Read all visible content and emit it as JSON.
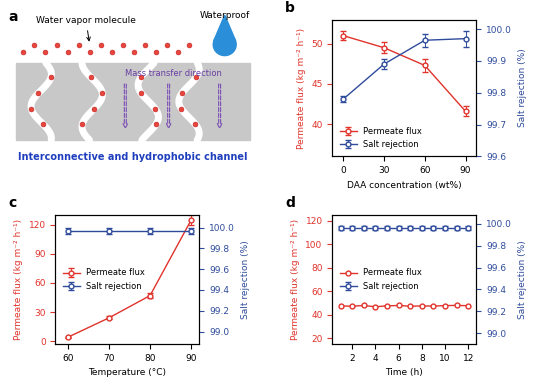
{
  "chart_data": [
    {
      "type": "diagram",
      "panel": "a",
      "annotations": [
        "Water vapor molecule",
        "Waterproof",
        "Mass transfer direction",
        "Interconnective and hydrophobic channel"
      ]
    },
    {
      "type": "line",
      "panel": "b",
      "x_label": "DAA concentration (wt%)",
      "y_label": "Permeate flux (kg m⁻² h⁻¹)",
      "y2_label": "Salt rejection (%)",
      "x": [
        0,
        30,
        60,
        90
      ],
      "xlim": [
        -8,
        98
      ],
      "xticks": [
        0,
        30,
        60,
        90
      ],
      "ylim": [
        36,
        53
      ],
      "yticks": [
        40,
        45,
        50
      ],
      "y2lim": [
        99.6,
        100.03
      ],
      "y2ticks": [
        99.6,
        99.7,
        99.8,
        99.9,
        100.0
      ],
      "legend": "lower left",
      "series": [
        {
          "name": "Permeate flux",
          "color": "#e0332b",
          "marker": "circle",
          "values": [
            51.0,
            49.5,
            47.3,
            41.6
          ],
          "errors": [
            0.6,
            0.7,
            0.8,
            0.6
          ]
        },
        {
          "name": "Salt rejection",
          "color": "#2f4c9c",
          "marker": "circle",
          "axis": "y2",
          "values": [
            99.78,
            99.89,
            99.965,
            99.97
          ],
          "errors": [
            0.01,
            0.015,
            0.02,
            0.025
          ]
        }
      ]
    },
    {
      "type": "line",
      "panel": "c",
      "x_label": "Temperature (°C)",
      "y_label": "Permeate flux (kg m⁻² h⁻¹)",
      "y2_label": "Salt rejection (%)",
      "x": [
        60,
        70,
        80,
        90
      ],
      "xlim": [
        57,
        92
      ],
      "xticks": [
        60,
        70,
        80,
        90
      ],
      "ylim": [
        -3,
        130
      ],
      "yticks": [
        0,
        30,
        60,
        90,
        120
      ],
      "y2lim": [
        98.88,
        100.12
      ],
      "y2ticks": [
        99.0,
        99.2,
        99.4,
        99.6,
        99.8,
        100.0
      ],
      "legend": "center left",
      "series": [
        {
          "name": "Permeate flux",
          "color": "#e0332b",
          "marker": "circle",
          "values": [
            4,
            24,
            47,
            125
          ],
          "errors": [
            0.5,
            1.5,
            2.5,
            5
          ]
        },
        {
          "name": "Salt rejection",
          "color": "#2f4c9c",
          "marker": "circle",
          "axis": "y2",
          "values": [
            99.97,
            99.97,
            99.97,
            99.97
          ],
          "errors": [
            0.03,
            0.03,
            0.03,
            0.03
          ]
        }
      ]
    },
    {
      "type": "line",
      "panel": "d",
      "x_label": "Time (h)",
      "y_label": "Permeate flux (kg m⁻² h⁻¹)",
      "y2_label": "Salt rejection (%)",
      "x": [
        1,
        2,
        3,
        4,
        5,
        6,
        7,
        8,
        9,
        10,
        11,
        12
      ],
      "xlim": [
        0.3,
        12.7
      ],
      "xticks": [
        2,
        4,
        6,
        8,
        10,
        12
      ],
      "ylim": [
        15,
        125
      ],
      "yticks": [
        20,
        40,
        60,
        80,
        100,
        120
      ],
      "y2lim": [
        98.9,
        100.08
      ],
      "y2ticks": [
        99.0,
        99.2,
        99.4,
        99.6,
        99.8,
        100.0
      ],
      "legend": "center left",
      "series": [
        {
          "name": "Permeate flux",
          "color": "#e0332b",
          "marker": "circle",
          "values": [
            47.5,
            47.3,
            47.9,
            46.8,
            47.6,
            47.9,
            47.3,
            47.5,
            47.4,
            47.8,
            48.0,
            47.7
          ]
        },
        {
          "name": "Salt rejection",
          "color": "#2f4c9c",
          "marker": "circle",
          "axis": "y2",
          "values": [
            99.96,
            99.96,
            99.96,
            99.96,
            99.96,
            99.96,
            99.96,
            99.96,
            99.96,
            99.96,
            99.96,
            99.96
          ],
          "errors": [
            0.02,
            0.02,
            0.02,
            0.02,
            0.02,
            0.02,
            0.02,
            0.02,
            0.02,
            0.02,
            0.02,
            0.02
          ]
        }
      ]
    }
  ]
}
